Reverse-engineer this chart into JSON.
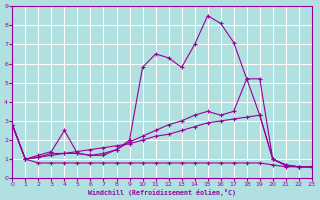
{
  "background_color": "#b0e0df",
  "grid_color": "#c0d8d8",
  "line_color": "#990099",
  "marker": "+",
  "xlabel": "Windchill (Refroidissement éolien,°C)",
  "xlim": [
    0,
    23
  ],
  "ylim": [
    0,
    9
  ],
  "xticks": [
    0,
    1,
    2,
    3,
    4,
    5,
    6,
    7,
    8,
    9,
    10,
    11,
    12,
    13,
    14,
    15,
    16,
    17,
    18,
    19,
    20,
    21,
    22,
    23
  ],
  "yticks": [
    0,
    1,
    2,
    3,
    4,
    5,
    6,
    7,
    8,
    9
  ],
  "series1": [
    2.8,
    1.0,
    0.8,
    0.8,
    0.8,
    0.8,
    0.8,
    0.8,
    0.8,
    0.8,
    0.8,
    0.8,
    0.8,
    0.8,
    0.8,
    0.8,
    0.8,
    0.8,
    0.8,
    0.8,
    0.7,
    0.6,
    0.6,
    0.6
  ],
  "series2": [
    2.8,
    1.0,
    1.1,
    1.2,
    1.3,
    1.4,
    1.5,
    1.6,
    1.7,
    1.8,
    2.0,
    2.2,
    2.3,
    2.5,
    2.7,
    2.9,
    3.0,
    3.1,
    3.2,
    3.3,
    1.0,
    0.7,
    0.6,
    0.6
  ],
  "series3": [
    2.8,
    1.0,
    1.2,
    1.4,
    2.5,
    1.3,
    1.2,
    1.3,
    1.5,
    1.9,
    2.2,
    2.5,
    2.8,
    3.0,
    3.3,
    3.5,
    3.3,
    3.5,
    5.2,
    3.3,
    1.0,
    0.7,
    0.6,
    0.6
  ],
  "series4": [
    2.8,
    1.0,
    1.1,
    1.3,
    1.3,
    1.3,
    1.2,
    1.2,
    1.5,
    2.0,
    5.8,
    6.5,
    6.3,
    5.8,
    7.0,
    8.5,
    8.1,
    7.1,
    5.2,
    5.2,
    1.0,
    0.65,
    0.6,
    0.6
  ]
}
